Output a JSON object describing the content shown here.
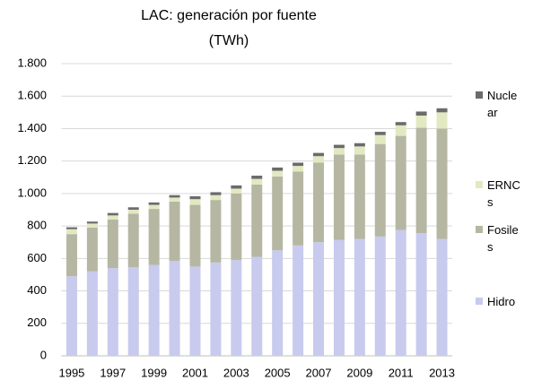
{
  "chart_data": {
    "type": "stacked_bar",
    "title": "LAC: generación por fuente (TWh)",
    "categories": [
      "1995",
      null,
      "1997",
      null,
      "1999",
      null,
      "2001",
      null,
      "2003",
      null,
      "2005",
      null,
      "2007",
      null,
      "2009",
      null,
      "2011",
      null,
      "2013"
    ],
    "series": [
      {
        "name": "Hidro",
        "color": "#c8caee",
        "values": [
          490,
          520,
          540,
          545,
          560,
          585,
          550,
          575,
          590,
          610,
          650,
          680,
          700,
          715,
          720,
          735,
          775,
          755,
          720
        ]
      },
      {
        "name": "Fosiles",
        "color": "#b6b7a2",
        "values": [
          260,
          270,
          300,
          330,
          345,
          365,
          380,
          385,
          410,
          445,
          455,
          455,
          490,
          525,
          520,
          570,
          580,
          650,
          680
        ]
      },
      {
        "name": "ERNCs",
        "color": "#e2e9c2",
        "values": [
          30,
          25,
          25,
          25,
          25,
          25,
          35,
          30,
          30,
          35,
          35,
          35,
          40,
          40,
          50,
          55,
          65,
          75,
          100
        ]
      },
      {
        "name": "Nuclear",
        "color": "#6b6b6b",
        "values": [
          12,
          12,
          15,
          15,
          15,
          15,
          18,
          18,
          20,
          20,
          20,
          20,
          20,
          20,
          20,
          20,
          20,
          25,
          25
        ]
      }
    ],
    "ylim": [
      0,
      1800
    ],
    "yticks": [
      0,
      200,
      400,
      600,
      800,
      {
        "value": 1000,
        "label": "1.000"
      },
      {
        "value": 1200,
        "label": "1.200"
      },
      {
        "value": 1400,
        "label": "1.400"
      },
      {
        "value": 1600,
        "label": "1.600"
      },
      {
        "value": 1800,
        "label": "1.800"
      }
    ],
    "grid": true
  }
}
